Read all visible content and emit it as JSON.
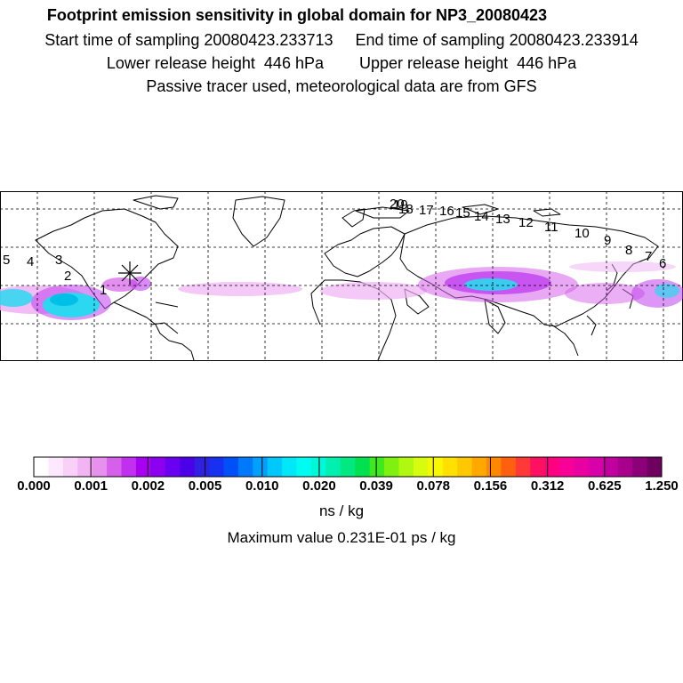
{
  "header": {
    "title": "Footprint emission sensitivity in global domain for NP3_20080423",
    "line2": "Start time of sampling 20080423.233713     End time of sampling 20080423.233914",
    "line3": "Lower release height  446 hPa        Upper release height  446 hPa",
    "line4": "Passive tracer used, meteorological data are from GFS"
  },
  "map": {
    "release_marker_icon": "asterisk-icon",
    "trajectory_labels": [
      "1",
      "2",
      "3",
      "4",
      "5",
      "6",
      "7",
      "8",
      "9",
      "10",
      "11",
      "12",
      "13",
      "14",
      "15",
      "16",
      "17",
      "18",
      "19",
      "20"
    ]
  },
  "colorbar": {
    "colors": [
      "#ffffff",
      "#fde8fd",
      "#f8d0f8",
      "#f2b4f2",
      "#e890ee",
      "#d560ea",
      "#c030ee",
      "#a800f0",
      "#8c00f0",
      "#6a00f0",
      "#4c00e8",
      "#3020e0",
      "#1830f0",
      "#0050f8",
      "#0078fa",
      "#00a0fc",
      "#00c8fc",
      "#00e8f8",
      "#00fcf0",
      "#00f8d8",
      "#00f0b0",
      "#00e880",
      "#00e050",
      "#40e820",
      "#80f010",
      "#b0f810",
      "#d8fc10",
      "#f8f800",
      "#ffe000",
      "#ffc800",
      "#ffa800",
      "#ff8800",
      "#ff6010",
      "#ff3838",
      "#ff1060",
      "#ff0080",
      "#f80098",
      "#e800a0",
      "#d800a8",
      "#c000a0",
      "#a8008c",
      "#8c0078",
      "#700060"
    ],
    "ticks": [
      "0.000",
      "0.001",
      "0.002",
      "0.005",
      "0.010",
      "0.020",
      "0.039",
      "0.078",
      "0.156",
      "0.312",
      "0.625",
      "1.250"
    ],
    "unit": "ns / kg",
    "max_value": "Maximum value  0.231E-01 ps / kg"
  },
  "colors": {
    "tracer_light": "#f0b0f4",
    "tracer_mid": "#c040ee",
    "tracer_high": "#2bd8f0",
    "tracer_core": "#00c0e8"
  }
}
